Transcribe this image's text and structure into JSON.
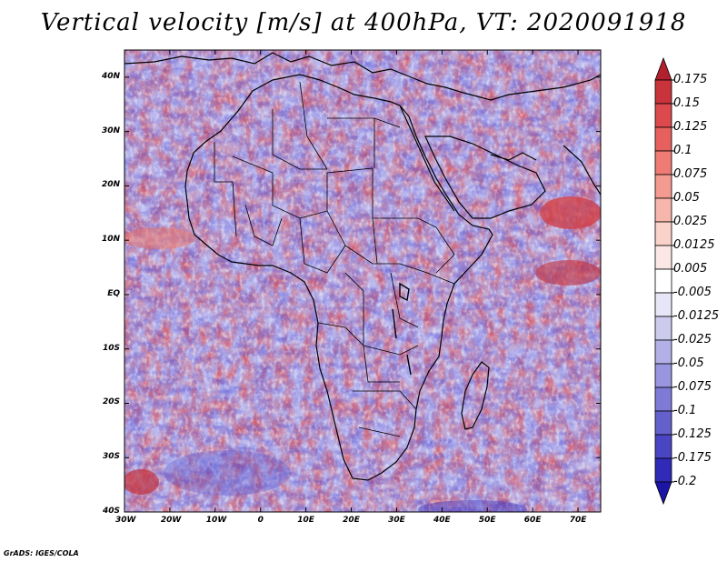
{
  "title": "Vertical velocity [m/s] at 400hPa, VT: 2020091918",
  "lat_labels": [
    "40N",
    "30N",
    "20N",
    "10N",
    "EQ",
    "10S",
    "20S",
    "30S",
    "40S"
  ],
  "lon_labels": [
    "30W",
    "20W",
    "10W",
    "0",
    "10E",
    "20E",
    "30E",
    "40E",
    "50E",
    "60E",
    "70E"
  ],
  "colorbar": {
    "labels": [
      "0.175",
      "0.15",
      "0.125",
      "0.1",
      "0.075",
      "0.05",
      "0.025",
      "0.0125",
      "0.005",
      "-0.005",
      "-0.0125",
      "-0.025",
      "-0.05",
      "-0.075",
      "-0.1",
      "-0.125",
      "-0.175",
      "-0.2"
    ],
    "colors": [
      "#b1202c",
      "#c9333c",
      "#dc4a4d",
      "#e6615d",
      "#ee7b74",
      "#f39b90",
      "#f6b6ab",
      "#f9d2c9",
      "#fbe8e4",
      "#ffffff",
      "#e6e6f6",
      "#cccbee",
      "#b2b0e6",
      "#9896df",
      "#7e7bd6",
      "#6460cc",
      "#4a45c2",
      "#302ab6",
      "#1c14a6"
    ]
  },
  "credit": "GrADS: IGES/COLA"
}
